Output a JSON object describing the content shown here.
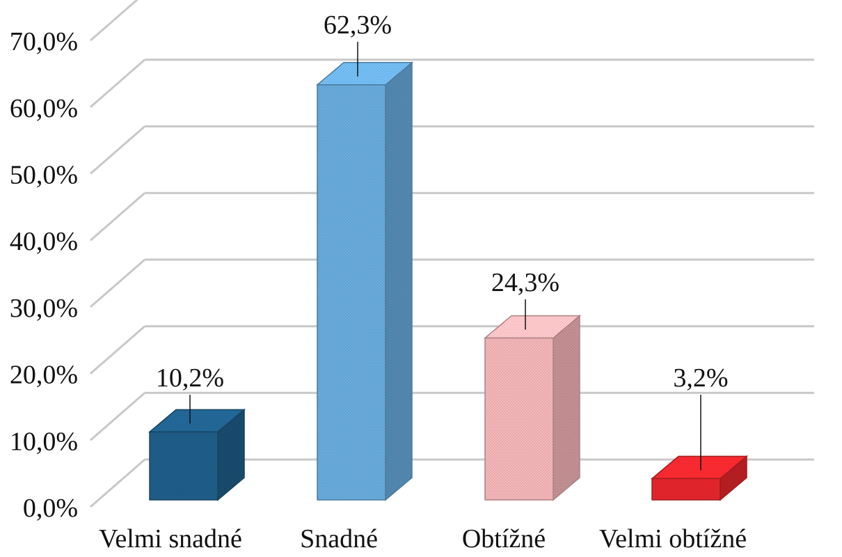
{
  "chart_data": {
    "type": "bar",
    "style": "3d-column",
    "categories": [
      "Velmi snadné",
      "Snadné",
      "Obtížné",
      "Velmi obtížné"
    ],
    "values": [
      10.2,
      62.3,
      24.3,
      3.2
    ],
    "value_labels": [
      "10,2%",
      "62,3%",
      "24,3%",
      "3,2%"
    ],
    "ylim": [
      0,
      70
    ],
    "y_ticks": [
      0,
      10,
      20,
      30,
      40,
      50,
      60,
      70
    ],
    "y_tick_labels": [
      "0,0%",
      "10,0%",
      "20,0%",
      "30,0%",
      "40,0%",
      "50,0%",
      "60,0%",
      "70,0%"
    ],
    "grid": true,
    "legend": "none",
    "title": "",
    "xlabel": "",
    "ylabel": "",
    "bar_colors": [
      "#1f5f8b",
      "#6aaee0",
      "#f7b8bb",
      "#e8262c"
    ]
  }
}
